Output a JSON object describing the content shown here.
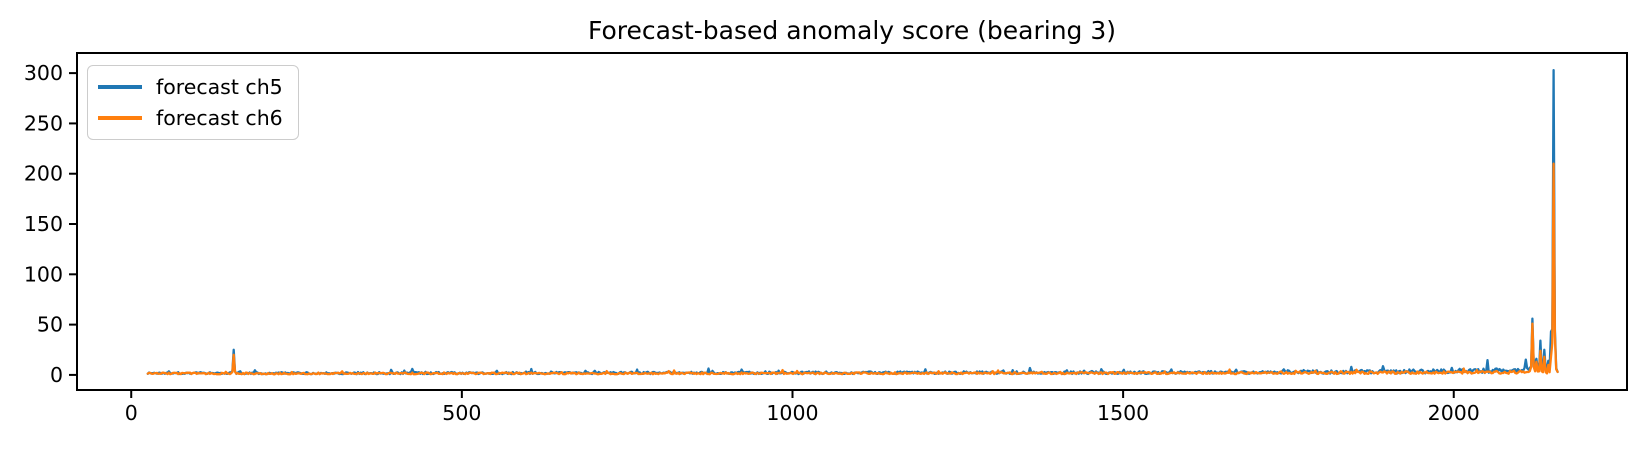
{
  "figure": {
    "background": "#ffffff",
    "spine_color": "#000000",
    "tick_color": "#000000",
    "text_color": "#000000",
    "legend_border_color": "#cccccc"
  },
  "chart_data": {
    "type": "line",
    "title": "Forecast-based anomaly score (bearing 3)",
    "xlabel": "",
    "ylabel": "",
    "xlim": [
      -82,
      2262
    ],
    "ylim": [
      -15,
      320
    ],
    "x_ticks": [
      0,
      500,
      1000,
      1500,
      2000
    ],
    "y_ticks": [
      0,
      50,
      100,
      150,
      200,
      250,
      300
    ],
    "grid": false,
    "legend_position": "upper left",
    "x_data_start": 25,
    "x_data_end": 2157,
    "x_step": 2,
    "noise_seed": 1337,
    "series": [
      {
        "name": "forecast ch5",
        "color": "#1f77b4",
        "line_width": 2.3,
        "peak_probability": 0.09,
        "envelope": [
          [
            25,
            2.2,
            5.0
          ],
          [
            300,
            2.2,
            5.5
          ],
          [
            700,
            2.4,
            6.0
          ],
          [
            1000,
            2.6,
            6.5
          ],
          [
            1300,
            2.8,
            7.0
          ],
          [
            1600,
            3.0,
            8.0
          ],
          [
            1750,
            3.4,
            9.5
          ],
          [
            1850,
            4.0,
            12.0
          ],
          [
            1950,
            4.5,
            14.0
          ],
          [
            2030,
            5.0,
            16.0
          ],
          [
            2080,
            5.5,
            18.0
          ],
          [
            2157,
            6.0,
            20.0
          ]
        ],
        "spikes": [
          [
            155,
            25
          ],
          [
            2119,
            56
          ],
          [
            2125,
            16
          ],
          [
            2131,
            34
          ],
          [
            2137,
            25
          ],
          [
            2143,
            14
          ],
          [
            2147,
            43
          ],
          [
            2151,
            303
          ],
          [
            2153,
            45
          ],
          [
            2157,
            3
          ]
        ]
      },
      {
        "name": "forecast ch6",
        "color": "#ff7f0e",
        "line_width": 2.3,
        "peak_probability": 0.06,
        "envelope": [
          [
            25,
            1.8,
            4.0
          ],
          [
            700,
            1.9,
            4.2
          ],
          [
            1300,
            2.1,
            4.8
          ],
          [
            1700,
            2.3,
            5.5
          ],
          [
            1850,
            2.6,
            6.5
          ],
          [
            1950,
            3.0,
            8.0
          ],
          [
            2050,
            3.2,
            9.0
          ],
          [
            2157,
            3.5,
            10.0
          ]
        ],
        "spikes": [
          [
            155,
            20
          ],
          [
            2119,
            51
          ],
          [
            2125,
            13
          ],
          [
            2131,
            24
          ],
          [
            2137,
            18
          ],
          [
            2143,
            10
          ],
          [
            2147,
            18
          ],
          [
            2151,
            210
          ],
          [
            2153,
            38
          ],
          [
            2157,
            3
          ]
        ]
      }
    ]
  }
}
